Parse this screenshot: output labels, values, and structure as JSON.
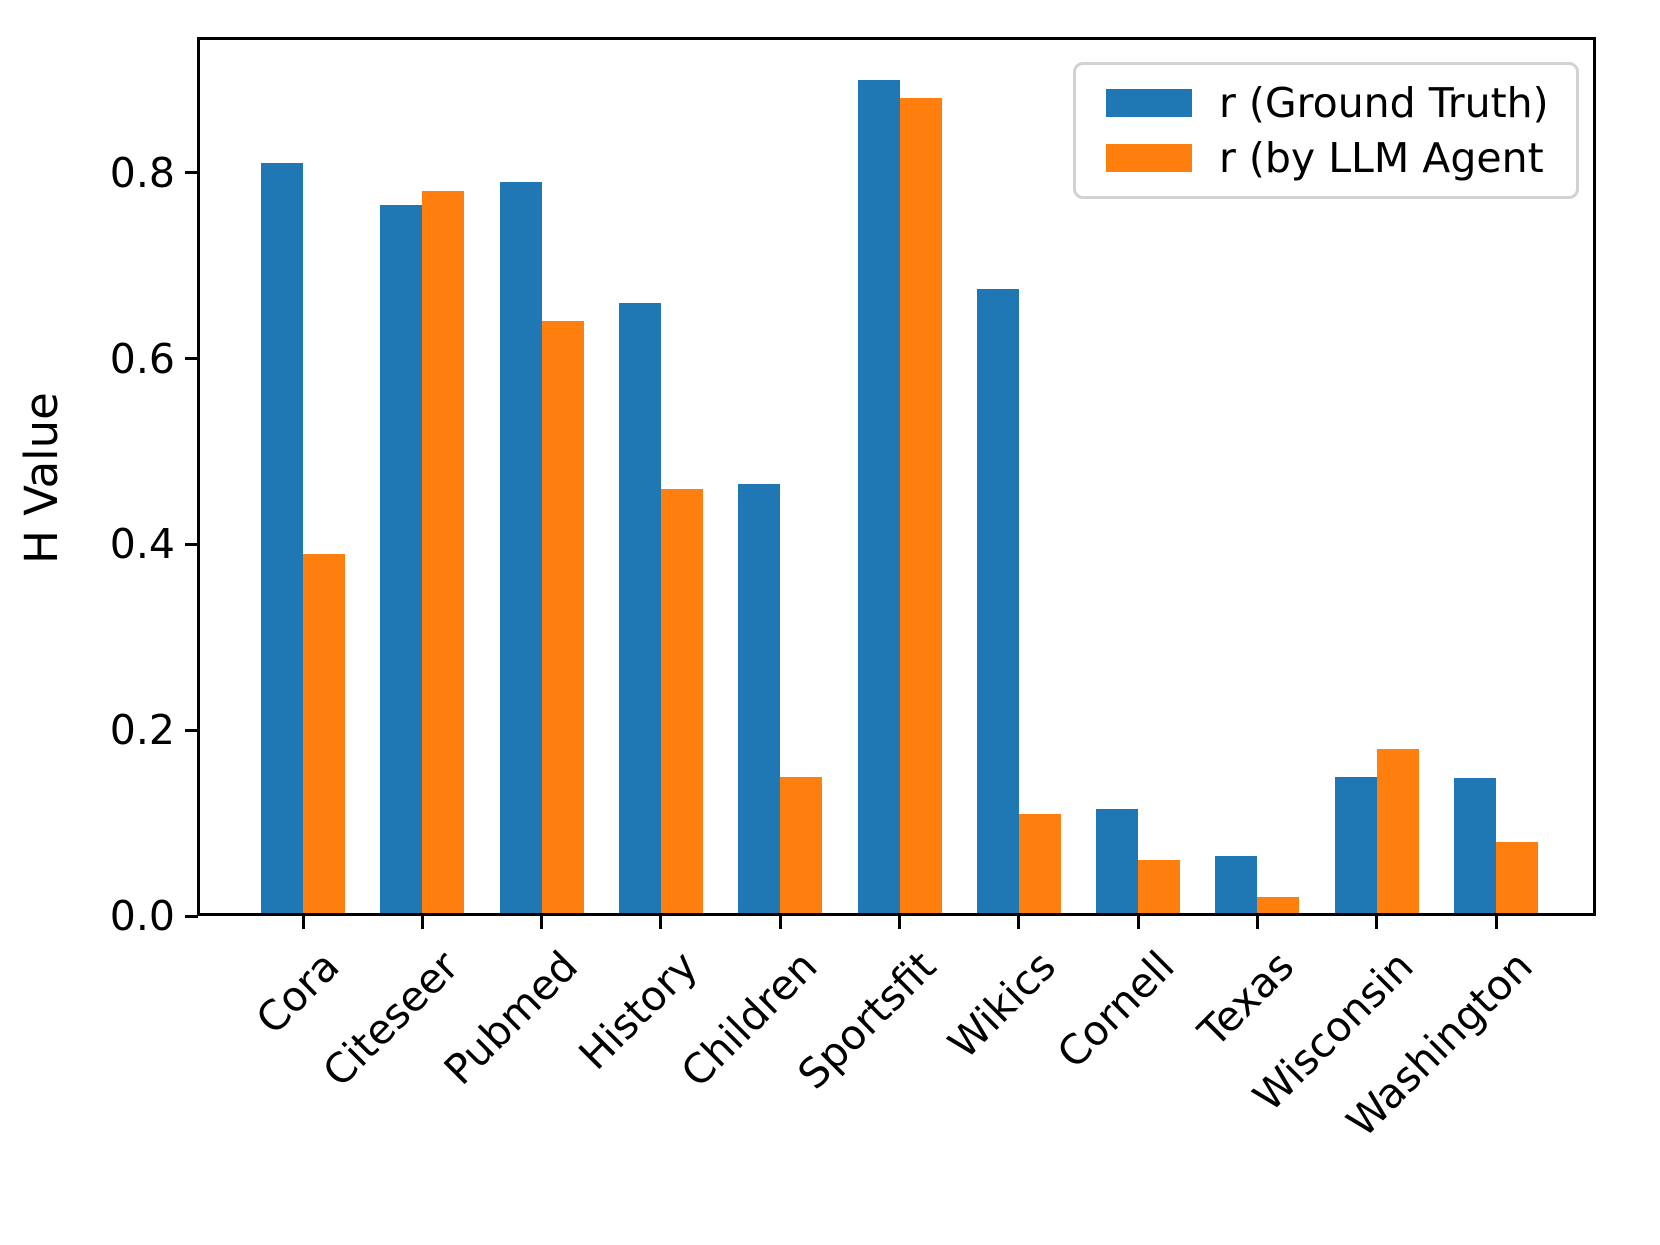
{
  "chart_data": {
    "type": "bar",
    "title": "",
    "xlabel": "",
    "ylabel": "H Value",
    "categories": [
      "Cora",
      "Citeseer",
      "Pubmed",
      "History",
      "Children",
      "Sportsfit",
      "Wikics",
      "Cornell",
      "Texas",
      "Wisconsin",
      "Washington"
    ],
    "series": [
      {
        "name": "r (Ground Truth)",
        "color": "#1f77b4",
        "values": [
          0.81,
          0.765,
          0.79,
          0.66,
          0.465,
          0.9,
          0.675,
          0.115,
          0.065,
          0.15,
          0.148
        ]
      },
      {
        "name": "r (by LLM Agent",
        "color": "#ff7f0e",
        "values": [
          0.39,
          0.78,
          0.64,
          0.46,
          0.15,
          0.88,
          0.11,
          0.06,
          0.02,
          0.18,
          0.08
        ]
      }
    ],
    "ylim": [
      0,
      0.945
    ],
    "ytick_labels": [
      "0.0",
      "0.2",
      "0.4",
      "0.6",
      "0.8"
    ],
    "ytick_values": [
      0.0,
      0.2,
      0.4,
      0.6,
      0.8
    ],
    "grid": "off",
    "legend_position": "upper right",
    "xtick_label_rotation_deg": 45
  },
  "colors": {
    "axes": "#000000",
    "background": "#ffffff",
    "legend_border": "#d2d2d2"
  }
}
